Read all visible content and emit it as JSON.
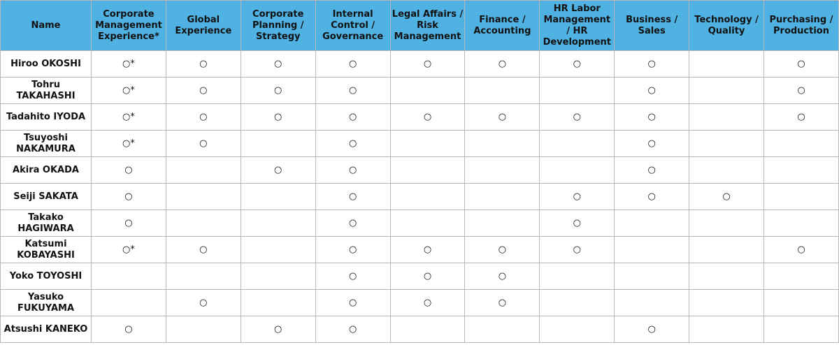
{
  "table": {
    "header": [
      "Name",
      "Corporate Management Experience*",
      "Global Experience",
      "Corporate Planning / Strategy",
      "Internal Control / Governance",
      "Legal Affairs / Risk Management",
      "Finance / Accounting",
      "HR Labor Management / HR Development",
      "Business / Sales",
      "Technology / Quality",
      "Purchasing / Production"
    ],
    "rows": [
      [
        "Hiroo OKOSHI",
        "○*",
        "○",
        "○",
        "○",
        "○",
        "○",
        "○",
        "○",
        null,
        "○"
      ],
      [
        "Tohru TAKAHASHI",
        "○*",
        "○",
        "○",
        "○",
        null,
        null,
        null,
        "○",
        null,
        "○"
      ],
      [
        "Tadahito IYODA",
        "○*",
        "○",
        "○",
        "○",
        "○",
        "○",
        "○",
        "○",
        null,
        "○"
      ],
      [
        "Tsuyoshi NAKAMURA",
        "○*",
        "○",
        null,
        "○",
        null,
        null,
        null,
        "○",
        null,
        null
      ],
      [
        "Akira OKADA",
        "○",
        null,
        "○",
        "○",
        null,
        null,
        null,
        "○",
        null,
        null
      ],
      [
        "Seiji SAKATA",
        "○",
        null,
        null,
        "○",
        null,
        null,
        "○",
        "○",
        "○",
        null
      ],
      [
        "Takako HAGIWARA",
        "○",
        null,
        null,
        "○",
        null,
        null,
        "○",
        null,
        null,
        null
      ],
      [
        "Katsumi KOBAYASHI",
        "○*",
        "○",
        null,
        "○",
        "○",
        "○",
        "○",
        null,
        null,
        "○"
      ],
      [
        "Yoko TOYOSHI",
        null,
        null,
        null,
        "○",
        "○",
        "○",
        null,
        null,
        null,
        null
      ],
      [
        "Yasuko FUKUYAMA",
        null,
        "○",
        null,
        "○",
        "○",
        "○",
        null,
        null,
        null,
        null
      ],
      [
        "Atsushi KANEKO",
        "○",
        null,
        "○",
        "○",
        null,
        null,
        null,
        "○",
        null,
        null
      ]
    ]
  }
}
